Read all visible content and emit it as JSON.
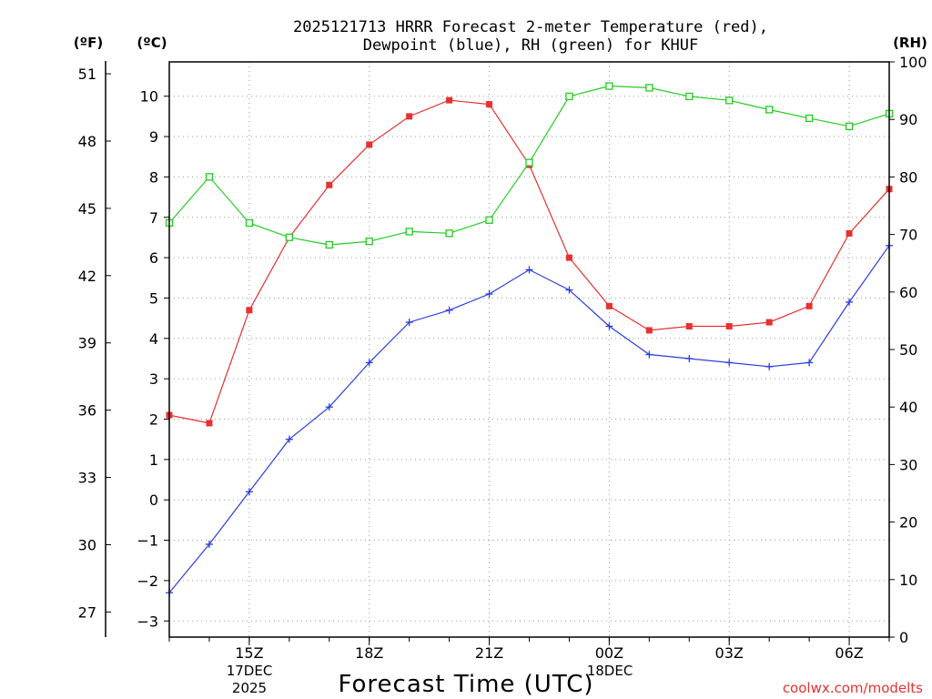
{
  "chart_data": {
    "type": "line",
    "title_line1": "2025121713 HRRR Forecast 2-meter Temperature (red),",
    "title_line2": "Dewpoint (blue), RH (green) for KHUF",
    "xlabel": "Forecast Time (UTC)",
    "unit_f": "(ºF)",
    "unit_c": "(ºC)",
    "unit_rh": "(RH)",
    "watermark": "coolwx.com/modelts",
    "date_labels": [
      "17DEC",
      "2025",
      "18DEC"
    ],
    "x_hours": [
      13,
      14,
      15,
      16,
      17,
      18,
      19,
      20,
      21,
      22,
      23,
      24,
      25,
      26,
      27,
      28,
      29,
      30,
      31
    ],
    "x_ticks": [
      {
        "hour": 15,
        "label": "15Z"
      },
      {
        "hour": 18,
        "label": "18Z"
      },
      {
        "hour": 21,
        "label": "21Z"
      },
      {
        "hour": 24,
        "label": "00Z"
      },
      {
        "hour": 27,
        "label": "03Z"
      },
      {
        "hour": 30,
        "label": "06Z"
      }
    ],
    "xlim": [
      13,
      31
    ],
    "ylim_c": [
      -3.4,
      10.85
    ],
    "ylim_rh": [
      0,
      100
    ],
    "c_ticks": [
      "-3",
      "-2",
      "-1",
      "0",
      "1",
      "2",
      "3",
      "4",
      "5",
      "6",
      "7",
      "8",
      "9",
      "10"
    ],
    "f_ticks": [
      "27",
      "30",
      "33",
      "36",
      "39",
      "42",
      "45",
      "48",
      "51"
    ],
    "rh_ticks": [
      "0",
      "10",
      "20",
      "30",
      "40",
      "50",
      "60",
      "70",
      "80",
      "90",
      "100"
    ],
    "series": [
      {
        "name": "Temperature",
        "axis": "c",
        "color": "#e83030",
        "marker": "filled-square",
        "values": [
          2.1,
          1.9,
          4.7,
          6.5,
          7.8,
          8.8,
          9.5,
          9.9,
          9.8,
          8.3,
          6.0,
          4.8,
          4.2,
          4.3,
          4.3,
          4.4,
          4.8,
          6.6,
          7.7
        ]
      },
      {
        "name": "Dewpoint",
        "axis": "c",
        "color": "#2a3ee0",
        "marker": "plus",
        "values": [
          -2.3,
          -1.1,
          0.2,
          1.5,
          2.3,
          3.4,
          4.4,
          4.7,
          5.1,
          5.7,
          5.2,
          4.3,
          3.6,
          3.5,
          3.4,
          3.3,
          3.4,
          4.9,
          6.3
        ]
      },
      {
        "name": "RH",
        "axis": "rh",
        "color": "#22cc22",
        "marker": "open-square",
        "values": [
          72,
          80,
          72,
          69.5,
          68.2,
          68.8,
          70.5,
          70.2,
          72.5,
          82.5,
          94,
          95.8,
          95.5,
          94,
          93.3,
          91.7,
          90.2,
          88.8,
          91
        ]
      }
    ]
  }
}
